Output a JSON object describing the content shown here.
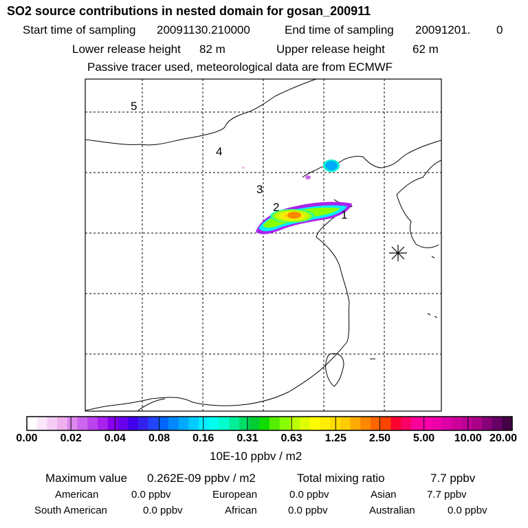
{
  "header": {
    "title": "SO2 source contributions in nested domain for gosan_200911",
    "start_label": "Start time of sampling",
    "start_value": "20091130.210000",
    "end_label": "End time of sampling",
    "end_value": "20091201.",
    "end_hour": "0",
    "lower_label": "Lower release height",
    "lower_value": "82 m",
    "upper_label": "Upper release height",
    "upper_value": "62 m",
    "note": "Passive tracer used, meteorological data are from ECMWF"
  },
  "map": {
    "region_labels": [
      "1",
      "2",
      "3",
      "4",
      "5"
    ],
    "receptor_marker": "receptor-star-icon",
    "grid_color": "#000000"
  },
  "colorbar": {
    "ticks": [
      "0.00",
      "0.02",
      "0.04",
      "0.08",
      "0.16",
      "0.31",
      "0.63",
      "1.25",
      "2.50",
      "5.00",
      "10.00",
      "20.00"
    ],
    "colors": [
      "#ffffff",
      "#fbe6fb",
      "#f5ccf5",
      "#eeb0ee",
      "#dd88ee",
      "#cc66ee",
      "#bb44ee",
      "#aa22ee",
      "#8800ee",
      "#6600ee",
      "#4400ee",
      "#3322ee",
      "#2244ff",
      "#0066ff",
      "#0088ff",
      "#00aaff",
      "#00ccff",
      "#00eeff",
      "#00ffee",
      "#00ffcc",
      "#00ee99",
      "#00dd66",
      "#00cc33",
      "#11dd00",
      "#55ee00",
      "#88ff00",
      "#bbff00",
      "#ddff00",
      "#ffff00",
      "#ffee00",
      "#ffdd00",
      "#ffcc00",
      "#ffaa00",
      "#ff8800",
      "#ff6600",
      "#ff4400",
      "#ff0033",
      "#ff0066",
      "#ff0099",
      "#ff00aa",
      "#ee00aa",
      "#dd00aa",
      "#cc0099",
      "#bb0099",
      "#aa0088",
      "#880077",
      "#660066",
      "#440044"
    ],
    "unit": "10E-10 ppbv / m2"
  },
  "summary": {
    "max_label": "Maximum value",
    "max_value": "0.262E-09 ppbv / m2",
    "total_label": "Total mixing ratio",
    "total_value": "7.7 ppbv",
    "regions": [
      {
        "name": "American",
        "value": "0.0 ppbv"
      },
      {
        "name": "European",
        "value": "0.0 ppbv"
      },
      {
        "name": "Asian",
        "value": "7.7 ppbv"
      },
      {
        "name": "South American",
        "value": "0.0 ppbv"
      },
      {
        "name": "African",
        "value": "0.0 ppbv"
      },
      {
        "name": "Australian",
        "value": "0.0 ppbv"
      }
    ]
  }
}
